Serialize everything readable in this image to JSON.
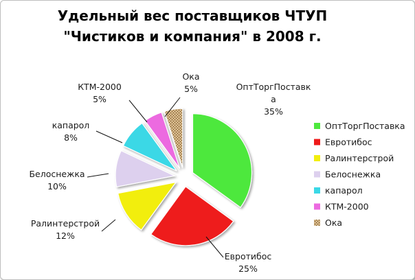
{
  "chart_data": {
    "type": "pie",
    "title_lines": [
      "Удельный вес поставщиков ЧТУП",
      "\"Чистиков и компания\" в 2008 г."
    ],
    "legend_position": "right",
    "slices": [
      {
        "name": "ОптТоргПоставка",
        "label_lines": [
          "ОптТоргПоставк",
          "а"
        ],
        "value": 35,
        "pct_label": "35%",
        "color": "#4ee83e"
      },
      {
        "name": "Евротибос",
        "label_lines": [
          "Евротибос"
        ],
        "value": 25,
        "pct_label": "25%",
        "color": "#ee1a1a"
      },
      {
        "name": "Ралинтерстрой",
        "label_lines": [
          "Ралинтерстрой"
        ],
        "value": 12,
        "pct_label": "12%",
        "color": "#f2ee0e"
      },
      {
        "name": "Белоснежка",
        "label_lines": [
          "Белоснежка"
        ],
        "value": 10,
        "pct_label": "10%",
        "color": "#ddd0ee"
      },
      {
        "name": "капарол",
        "label_lines": [
          "капарол"
        ],
        "value": 8,
        "pct_label": "8%",
        "color": "#3ad8e6"
      },
      {
        "name": "КТМ-2000",
        "label_lines": [
          "КТМ-2000"
        ],
        "value": 5,
        "pct_label": "5%",
        "color": "#ec6ae0"
      },
      {
        "name": "Ока",
        "label_lines": [
          "Ока"
        ],
        "value": 5,
        "pct_label": "5%",
        "color": "#c9a878"
      }
    ]
  }
}
